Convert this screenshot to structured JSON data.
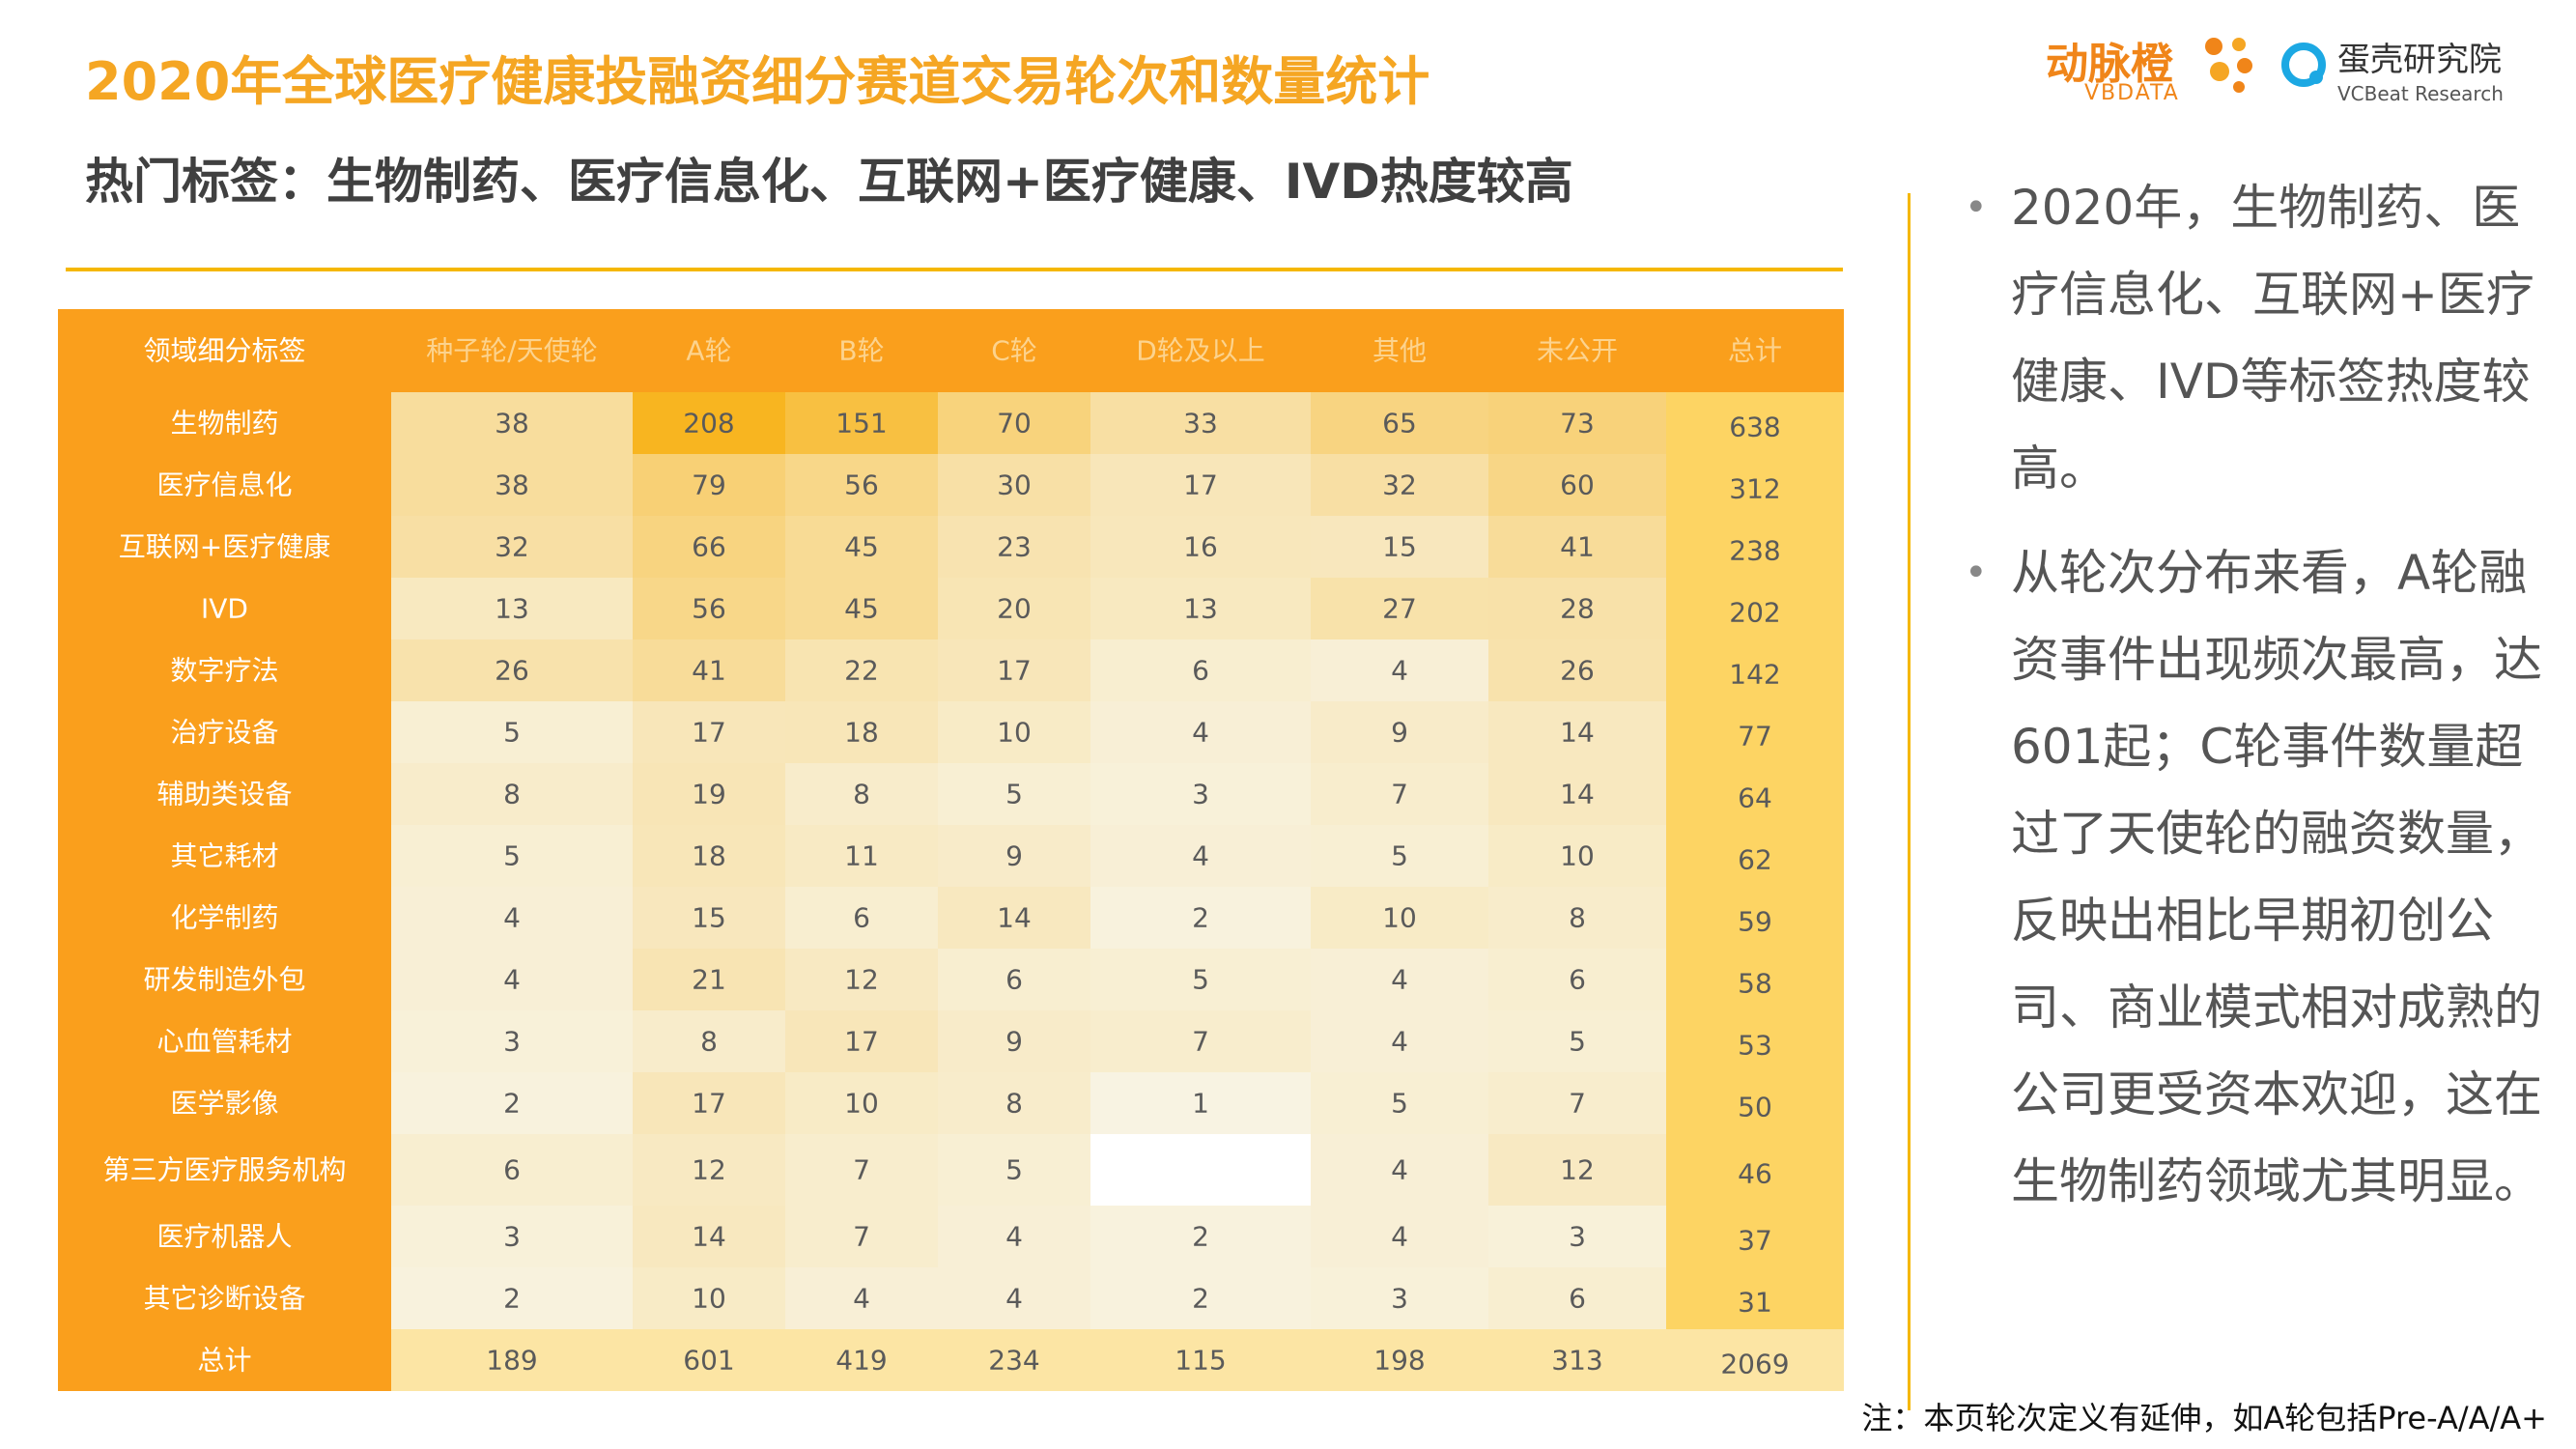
{
  "header": {
    "title": "2020年全球医疗健康投融资细分赛道交易轮次和数量统计",
    "subtitle": "热门标签：生物制药、医疗信息化、互联网+医疗健康、IVD热度较高"
  },
  "logos": {
    "vbdata_cn": "动脉橙",
    "vbdata_en": "VBDATA",
    "vcbeat_cn": "蛋壳研究院",
    "vcbeat_en": "VCBeat Research"
  },
  "colors": {
    "accent": "#F5A623",
    "header_bg": "#FA9F1C",
    "label_col_bg": "#FA9F1C",
    "total_col_bg": "#FDD463",
    "total_row_bg": "#FCE5A4",
    "heat_low": "#F8F7ED",
    "heat_high": "#F8B520"
  },
  "chart_data": {
    "type": "heatmap",
    "corner_label": "领域细分标签",
    "columns": [
      "种子轮/天使轮",
      "A轮",
      "B轮",
      "C轮",
      "D轮及以上",
      "其他",
      "未公开",
      "总计"
    ],
    "rows": [
      {
        "label": "生物制药",
        "values": [
          38,
          208,
          151,
          70,
          33,
          65,
          73
        ],
        "total": 638
      },
      {
        "label": "医疗信息化",
        "values": [
          38,
          79,
          56,
          30,
          17,
          32,
          60
        ],
        "total": 312
      },
      {
        "label": "互联网+医疗健康",
        "values": [
          32,
          66,
          45,
          23,
          16,
          15,
          41
        ],
        "total": 238
      },
      {
        "label": "IVD",
        "values": [
          13,
          56,
          45,
          20,
          13,
          27,
          28
        ],
        "total": 202
      },
      {
        "label": "数字疗法",
        "values": [
          26,
          41,
          22,
          17,
          6,
          4,
          26
        ],
        "total": 142
      },
      {
        "label": "治疗设备",
        "values": [
          5,
          17,
          18,
          10,
          4,
          9,
          14
        ],
        "total": 77
      },
      {
        "label": "辅助类设备",
        "values": [
          8,
          19,
          8,
          5,
          3,
          7,
          14
        ],
        "total": 64
      },
      {
        "label": "其它耗材",
        "values": [
          5,
          18,
          11,
          9,
          4,
          5,
          10
        ],
        "total": 62
      },
      {
        "label": "化学制药",
        "values": [
          4,
          15,
          6,
          14,
          2,
          10,
          8
        ],
        "total": 59
      },
      {
        "label": "研发制造外包",
        "values": [
          4,
          21,
          12,
          6,
          5,
          4,
          6
        ],
        "total": 58
      },
      {
        "label": "心血管耗材",
        "values": [
          3,
          8,
          17,
          9,
          7,
          4,
          5
        ],
        "total": 53
      },
      {
        "label": "医学影像",
        "values": [
          2,
          17,
          10,
          8,
          1,
          5,
          7
        ],
        "total": 50
      },
      {
        "label": "第三方医疗服务机构",
        "values": [
          6,
          12,
          7,
          5,
          null,
          4,
          12
        ],
        "total": 46
      },
      {
        "label": "医疗机器人",
        "values": [
          3,
          14,
          7,
          4,
          2,
          4,
          3
        ],
        "total": 37
      },
      {
        "label": "其它诊断设备",
        "values": [
          2,
          10,
          4,
          4,
          2,
          3,
          6
        ],
        "total": 31
      }
    ],
    "total_row": {
      "label": "总计",
      "values": [
        189,
        601,
        419,
        234,
        115,
        198,
        313
      ],
      "total": 2069
    },
    "value_range": [
      0,
      208
    ]
  },
  "bullets": [
    "2020年，生物制药、医疗信息化、互联网+医疗健康、IVD等标签热度较高。",
    "从轮次分布来看，A轮融资事件出现频次最高，达601起；C轮事件数量超过了天使轮的融资数量，反映出相比早期初创公司、商业模式相对成熟的公司更受资本欢迎，这在生物制药领域尤其明显。"
  ],
  "footnote": "注：本页轮次定义有延伸，如A轮包括Pre-A/A/A+"
}
